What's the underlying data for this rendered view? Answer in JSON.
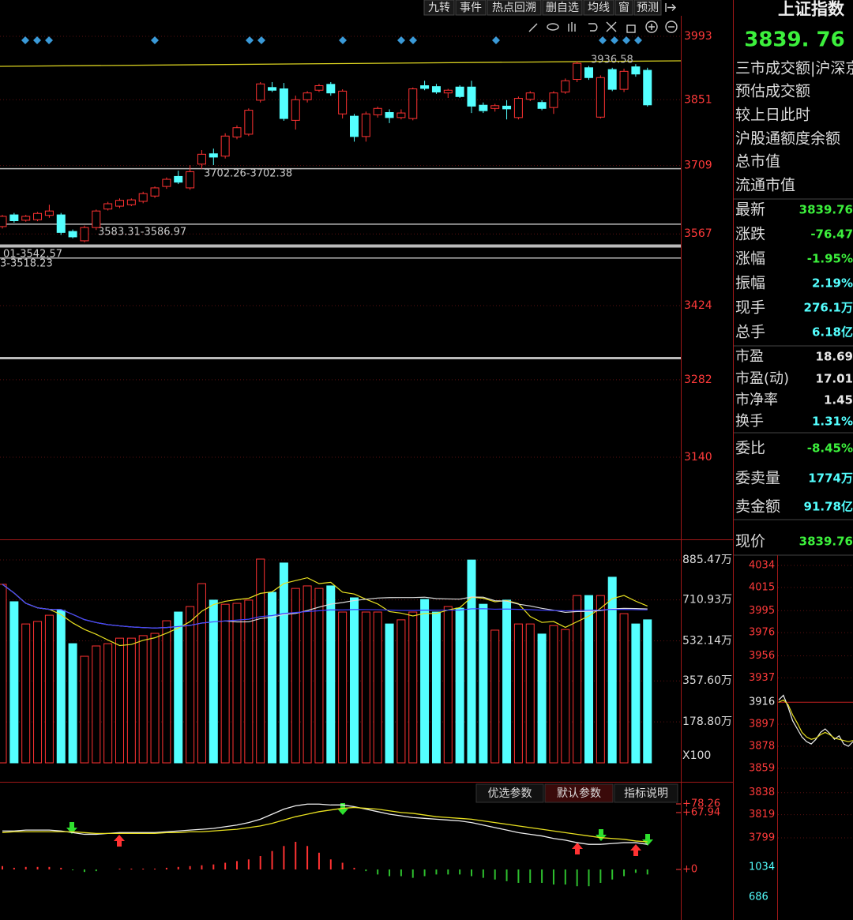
{
  "toolbar": {
    "buttons": [
      "九转",
      "事件",
      "热点回溯",
      "删自选",
      "均线",
      "窗",
      "预测"
    ]
  },
  "kline": {
    "log_scale": true,
    "up_color": "#ff3232",
    "down_color": "#54ffff",
    "price_ticks": [
      3993,
      3851,
      3709,
      3567,
      3424,
      3282,
      3140
    ],
    "high_label": "3936.58",
    "level_labels": [
      "3702.26-3702.38",
      "3583.31-3586.97",
      "01-3542.57",
      "3-3518.23"
    ],
    "candles": [
      [
        3582,
        3606,
        3578,
        3603
      ],
      [
        3606,
        3610,
        3590,
        3594
      ],
      [
        3595,
        3606,
        3592,
        3603
      ],
      [
        3596,
        3612,
        3593,
        3609
      ],
      [
        3605,
        3627,
        3600,
        3614
      ],
      [
        3606,
        3610,
        3565,
        3570
      ],
      [
        3572,
        3576,
        3558,
        3561
      ],
      [
        3553,
        3584,
        3550,
        3580
      ],
      [
        3580,
        3617,
        3575,
        3614
      ],
      [
        3618,
        3633,
        3615,
        3629
      ],
      [
        3624,
        3640,
        3620,
        3636
      ],
      [
        3627,
        3640,
        3624,
        3637
      ],
      [
        3634,
        3654,
        3630,
        3650
      ],
      [
        3645,
        3665,
        3641,
        3662
      ],
      [
        3665,
        3684,
        3660,
        3680
      ],
      [
        3686,
        3698,
        3670,
        3674
      ],
      [
        3662,
        3710,
        3658,
        3696
      ],
      [
        3712,
        3742,
        3702,
        3733
      ],
      [
        3734,
        3745,
        3710,
        3727
      ],
      [
        3729,
        3778,
        3724,
        3772
      ],
      [
        3770,
        3795,
        3765,
        3790
      ],
      [
        3776,
        3832,
        3772,
        3828
      ],
      [
        3850,
        3890,
        3845,
        3886
      ],
      [
        3878,
        3890,
        3868,
        3872
      ],
      [
        3875,
        3888,
        3805,
        3810
      ],
      [
        3806,
        3860,
        3786,
        3851
      ],
      [
        3851,
        3870,
        3845,
        3866
      ],
      [
        3872,
        3886,
        3868,
        3882
      ],
      [
        3885,
        3890,
        3860,
        3866
      ],
      [
        3820,
        3874,
        3810,
        3870
      ],
      [
        3815,
        3820,
        3760,
        3771
      ],
      [
        3771,
        3825,
        3760,
        3820
      ],
      [
        3818,
        3836,
        3812,
        3832
      ],
      [
        3823,
        3830,
        3800,
        3812
      ],
      [
        3812,
        3830,
        3808,
        3822
      ],
      [
        3810,
        3878,
        3806,
        3875
      ],
      [
        3882,
        3893,
        3872,
        3876
      ],
      [
        3880,
        3886,
        3864,
        3868
      ],
      [
        3866,
        3875,
        3855,
        3872
      ],
      [
        3879,
        3883,
        3855,
        3858
      ],
      [
        3879,
        3893,
        3822,
        3837
      ],
      [
        3839,
        3845,
        3822,
        3827
      ],
      [
        3832,
        3842,
        3825,
        3838
      ],
      [
        3837,
        3850,
        3808,
        3831
      ],
      [
        3812,
        3858,
        3808,
        3854
      ],
      [
        3852,
        3870,
        3848,
        3866
      ],
      [
        3845,
        3850,
        3828,
        3832
      ],
      [
        3834,
        3870,
        3820,
        3866
      ],
      [
        3868,
        3898,
        3864,
        3893
      ],
      [
        3896,
        3936.58,
        3890,
        3932
      ],
      [
        3922,
        3926,
        3895,
        3900
      ],
      [
        3813,
        3905,
        3810,
        3900
      ],
      [
        3918,
        3922,
        3870,
        3874
      ],
      [
        3874,
        3920,
        3868,
        3914
      ],
      [
        3924,
        3930,
        3902,
        3908
      ],
      [
        3916.23,
        3922,
        3836,
        3839.76
      ]
    ]
  },
  "volume": {
    "ticks": [
      {
        "value": 885.47,
        "label": "885.47万"
      },
      {
        "value": 710.93,
        "label": "710.93万"
      },
      {
        "value": 532.14,
        "label": "532.14万"
      },
      {
        "value": 357.6,
        "label": "357.60万"
      },
      {
        "value": 178.8,
        "label": "178.80万"
      }
    ],
    "unit_label": "X100",
    "values": [
      779,
      703,
      606,
      617,
      644,
      665,
      520,
      465,
      510,
      520,
      544,
      544,
      555,
      565,
      620,
      658,
      682,
      782,
      710,
      692,
      696,
      710,
      889,
      744,
      872,
      761,
      772,
      761,
      772,
      658,
      720,
      658,
      658,
      606,
      624,
      658,
      713,
      658,
      682,
      675,
      885,
      692,
      579,
      710,
      606,
      606,
      562,
      599,
      582,
      730,
      730,
      730,
      810,
      651,
      606,
      624
    ]
  },
  "macd": {
    "ticks": [
      {
        "value": 78.26,
        "label": "+78.26"
      },
      {
        "value": 67.94,
        "label": "+67.94"
      },
      {
        "value": 0,
        "label": "+0"
      }
    ],
    "buttons": [
      "优选参数",
      "默认参数",
      "指标说明"
    ],
    "dif": [
      46,
      46,
      47,
      47,
      47,
      46,
      44,
      42,
      42,
      43,
      44,
      44,
      44,
      44,
      45,
      46,
      47,
      48,
      49,
      51,
      53,
      56,
      60,
      66,
      72,
      76,
      78,
      78,
      77,
      77,
      75,
      72,
      69,
      66,
      64,
      62,
      61,
      60,
      59,
      58,
      56,
      53,
      50,
      47,
      44,
      42,
      40,
      37,
      35,
      32,
      30,
      30,
      31,
      32,
      32,
      30
    ],
    "dea": [
      44,
      45,
      45,
      45,
      45,
      45,
      45,
      44,
      43,
      43,
      43,
      43,
      43,
      43,
      44,
      44,
      45,
      45,
      46,
      47,
      48,
      50,
      52,
      55,
      59,
      63,
      66,
      69,
      71,
      73,
      74,
      73,
      72,
      70,
      68,
      67,
      65,
      63,
      62,
      61,
      60,
      58,
      56,
      54,
      52,
      50,
      48,
      46,
      44,
      42,
      40,
      38,
      37,
      36,
      34,
      33
    ],
    "hist": [
      4,
      2,
      3,
      3,
      3,
      2,
      -1,
      -3,
      -2,
      0,
      1,
      1,
      1,
      1,
      2,
      3,
      4,
      5,
      6,
      8,
      10,
      12,
      16,
      22,
      28,
      33,
      28,
      20,
      12,
      8,
      2,
      -2,
      -6,
      -8,
      -8,
      -10,
      -8,
      -6,
      -6,
      -6,
      -8,
      -10,
      -12,
      -14,
      -16,
      -16,
      -16,
      -18,
      -18,
      -20,
      -20,
      -16,
      -12,
      -8,
      -4,
      -6
    ]
  },
  "sidebar": {
    "title": "上证指数",
    "price": "3839. 76",
    "info_rows": [
      "三市成交额|沪深京",
      "预估成交额",
      "较上日此时",
      "沪股通额度余额",
      "总市值",
      "流通市值"
    ],
    "quote_rows": [
      {
        "label": "最新",
        "value": "3839.76",
        "color": "#3cf03c"
      },
      {
        "label": "涨跌",
        "value": "-76.47",
        "color": "#3cf03c"
      },
      {
        "label": "涨幅",
        "value": "-1.95%",
        "color": "#3cf03c"
      },
      {
        "label": "振幅",
        "value": "2.19%",
        "color": "#54ffff"
      },
      {
        "label": "现手",
        "value": "276.1万",
        "color": "#54ffff"
      },
      {
        "label": "总手",
        "value": "6.18亿",
        "color": "#54ffff"
      },
      {
        "label": "市盈",
        "value": "18.69",
        "color": "#e8e8e8"
      },
      {
        "label": "市盈(动)",
        "value": "17.01",
        "color": "#e8e8e8"
      },
      {
        "label": "市净率",
        "value": "1.45",
        "color": "#e8e8e8"
      },
      {
        "label": "换手",
        "value": "1.31%",
        "color": "#54ffff"
      },
      {
        "label": "委比",
        "value": "-8.45%",
        "color": "#3cf03c"
      },
      {
        "label": "委卖量",
        "value": "1774万",
        "color": "#54ffff"
      },
      {
        "label": "卖金额",
        "value": "91.78亿",
        "color": "#54ffff"
      },
      {
        "label": "现价",
        "value": "3839.76",
        "color": "#3cf03c"
      }
    ],
    "mini": {
      "ticks": [
        4034,
        4015,
        3995,
        3976,
        3956,
        3937,
        3916,
        3897,
        3878,
        3859,
        3838,
        3819,
        3799
      ],
      "vol_ticks": [
        1034,
        686
      ],
      "price": [
        3918,
        3922,
        3912,
        3900,
        3893,
        3886,
        3882,
        3880,
        3884,
        3890,
        3893,
        3889,
        3884,
        3887,
        3880,
        3878,
        3882
      ],
      "avg": [
        3916,
        3918,
        3914,
        3905,
        3898,
        3890,
        3886,
        3884,
        3885,
        3888,
        3890,
        3888,
        3885,
        3884,
        3883,
        3882,
        3883
      ]
    }
  }
}
